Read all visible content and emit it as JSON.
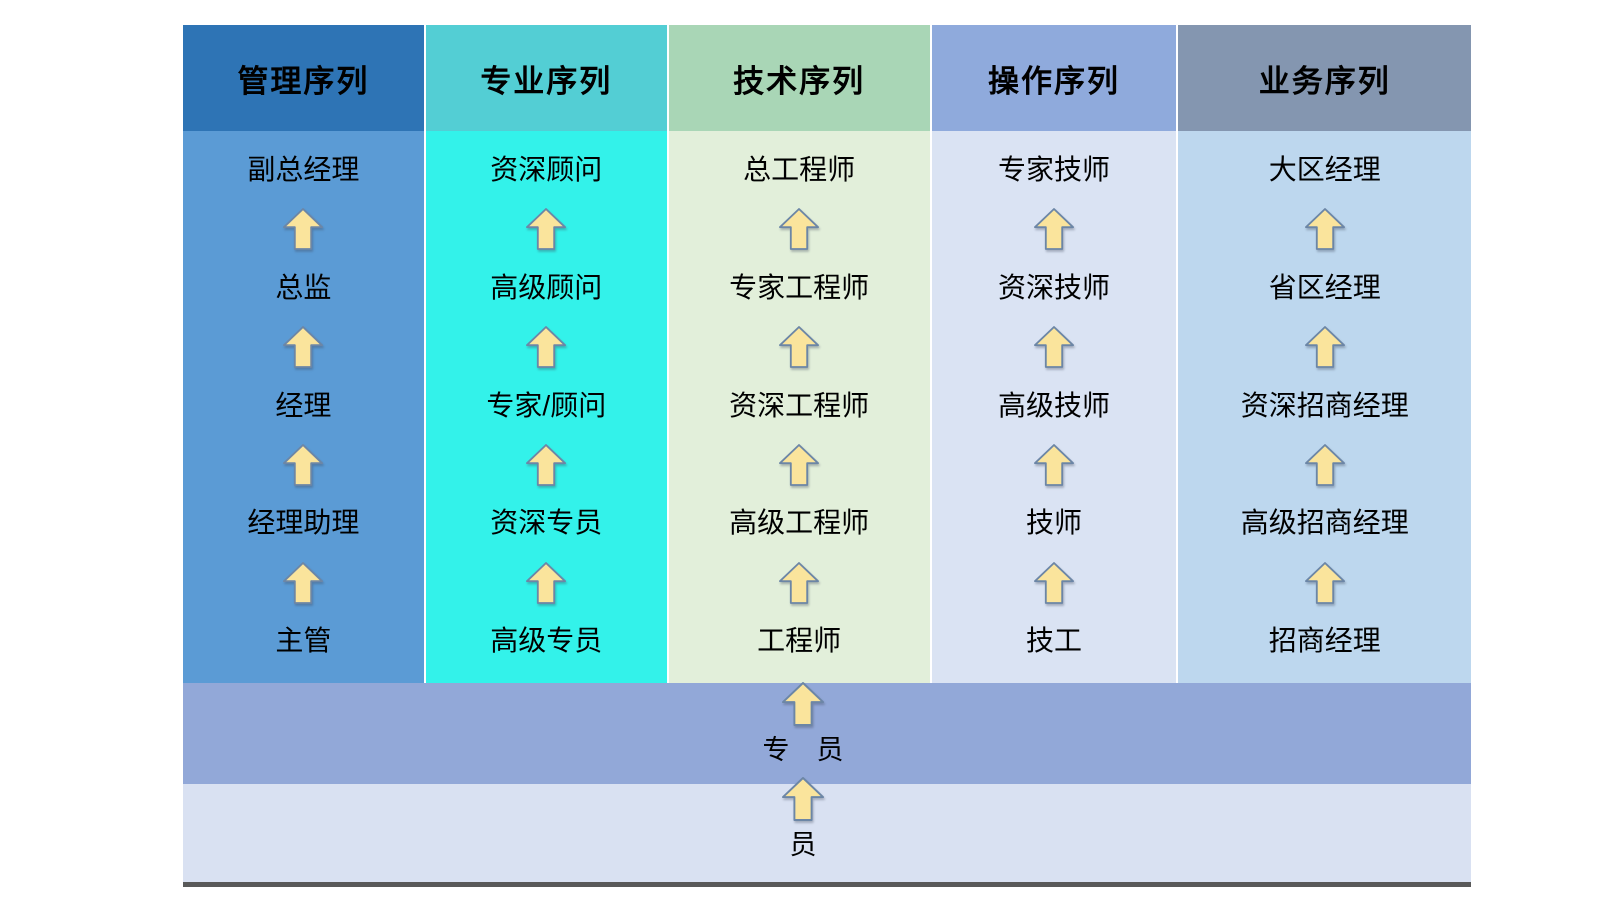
{
  "diagram": {
    "title": "career-ladder-sequences",
    "columns": [
      {
        "title": "管理序列",
        "header_color": "#2E74B5",
        "body_color": "#5B9BD5",
        "levels": [
          "副总经理",
          "总监",
          "经理",
          "经理助理",
          "主管"
        ]
      },
      {
        "title": "专业序列",
        "header_color": "#53CED4",
        "body_color": "#33F2EA",
        "levels": [
          "资深顾问",
          "高级顾问",
          "专家/顾问",
          "资深专员",
          "高级专员"
        ]
      },
      {
        "title": "技术序列",
        "header_color": "#A9D6B6",
        "body_color": "#E2EFDA",
        "levels": [
          "总工程师",
          "专家工程师",
          "资深工程师",
          "高级工程师",
          "工程师"
        ]
      },
      {
        "title": "操作序列",
        "header_color": "#8FAADC",
        "body_color": "#DAE3F3",
        "levels": [
          "专家技师",
          "资深技师",
          "高级技师",
          "技师",
          "技工"
        ]
      },
      {
        "title": "业务序列",
        "header_color": "#8496B0",
        "body_color": "#BDD7EE",
        "levels": [
          "大区经理",
          "省区经理",
          "资深招商经理",
          "高级招商经理",
          "招商经理"
        ]
      }
    ],
    "base_bands": [
      {
        "label": "专　员",
        "color": "#92A8D8"
      },
      {
        "label": "员",
        "color": "#D9E1F2"
      }
    ],
    "arrow": {
      "fill": "#FAE49C",
      "stroke": "#6C86A6"
    },
    "baseline_color": "#595959"
  }
}
